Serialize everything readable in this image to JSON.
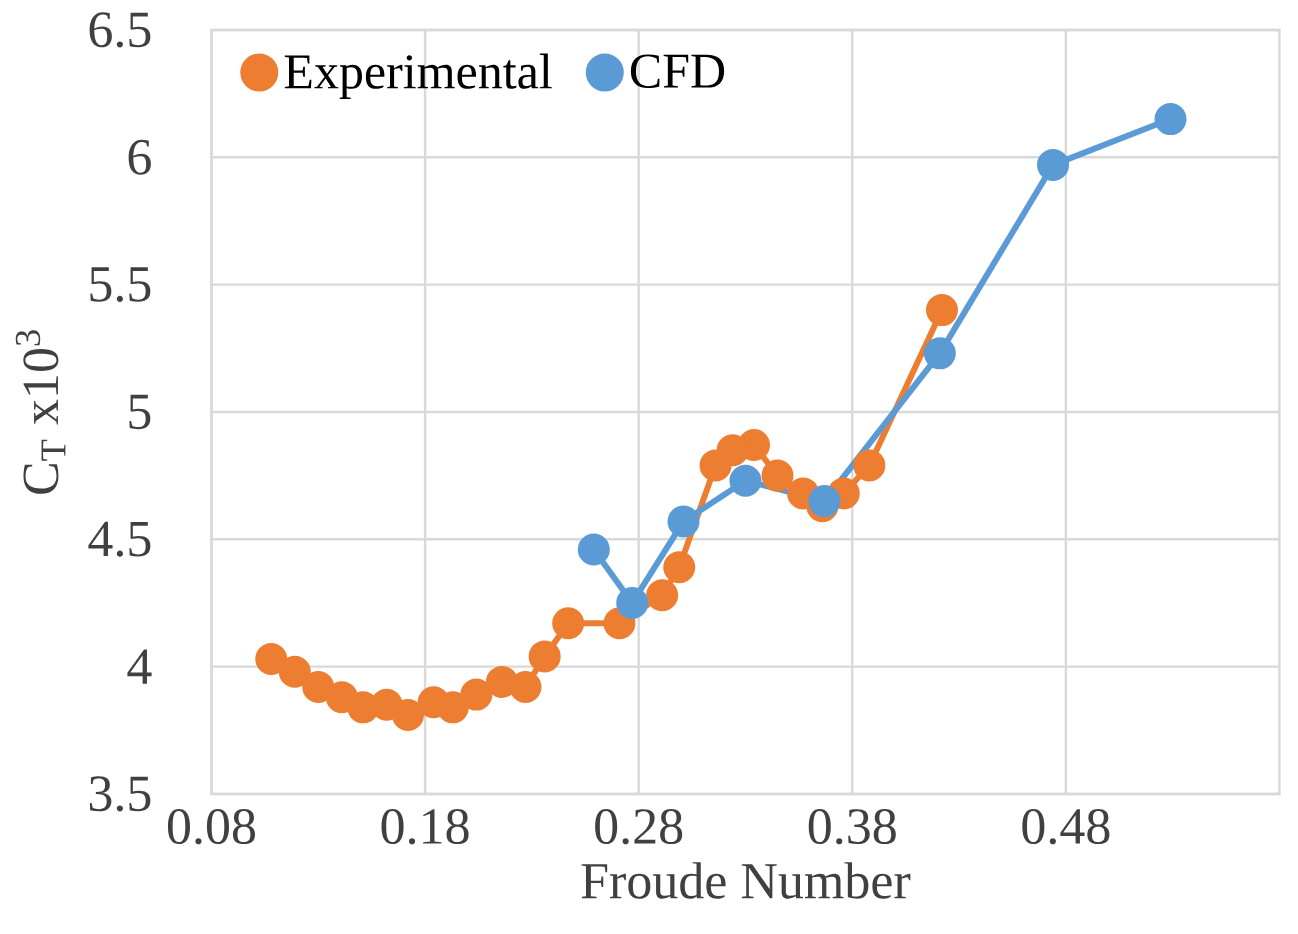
{
  "chart_data": {
    "type": "line",
    "xlabel": "Froude Number",
    "ylabel": "C$_{T}$ x10$^{3}$",
    "xlim": [
      0.08,
      0.58
    ],
    "ylim": [
      3.5,
      6.5
    ],
    "xticks": [
      0.08,
      0.18,
      0.28,
      0.38,
      0.48
    ],
    "yticks": [
      3.5,
      4,
      4.5,
      5,
      5.5,
      6,
      6.5
    ],
    "grid": true,
    "legend": "top left",
    "marker": "circle",
    "line_style": "solid",
    "series": [
      {
        "name": "Experimental",
        "color": "#ed7d31",
        "x": [
          0.108,
          0.119,
          0.13,
          0.141,
          0.151,
          0.162,
          0.172,
          0.184,
          0.193,
          0.204,
          0.216,
          0.227,
          0.236,
          0.247,
          0.271,
          0.291,
          0.299,
          0.316,
          0.324,
          0.334,
          0.345,
          0.357,
          0.366,
          0.376,
          0.388,
          0.422
        ],
        "values": [
          4.03,
          3.98,
          3.92,
          3.88,
          3.84,
          3.85,
          3.81,
          3.86,
          3.84,
          3.89,
          3.94,
          3.92,
          4.04,
          4.17,
          4.17,
          4.28,
          4.39,
          4.79,
          4.85,
          4.87,
          4.75,
          4.68,
          4.63,
          4.68,
          4.79,
          5.4
        ]
      },
      {
        "name": "CFD",
        "color": "#5b9bd5",
        "x": [
          0.259,
          0.277,
          0.301,
          0.33,
          0.367,
          0.421,
          0.474,
          0.529
        ],
        "values": [
          4.46,
          4.25,
          4.57,
          4.73,
          4.65,
          5.23,
          5.97,
          6.15
        ]
      }
    ]
  }
}
